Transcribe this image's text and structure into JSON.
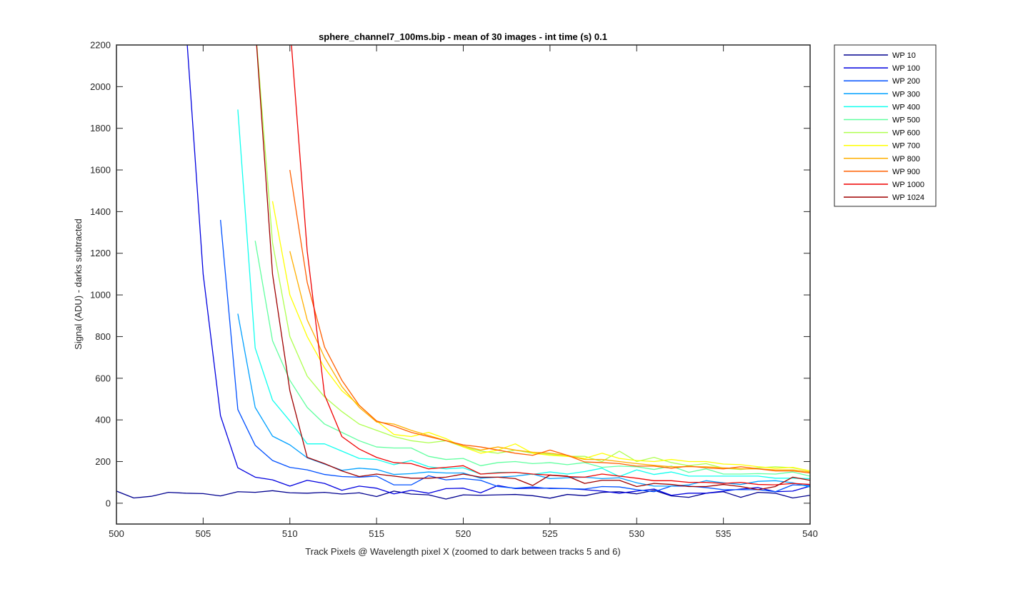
{
  "chart_data": {
    "type": "line",
    "title": "sphere_channel7_100ms.bip - mean of 30 images - int time (s) 0.1",
    "xlabel": "Track Pixels @ Wavelength pixel X  (zoomed to dark between tracks 5 and 6)",
    "ylabel": "Signal (ADU) - darks subtracted",
    "xlim": [
      500,
      540
    ],
    "ylim": [
      -100,
      2200
    ],
    "xticks": [
      500,
      505,
      510,
      515,
      520,
      525,
      530,
      535,
      540
    ],
    "yticks": [
      0,
      200,
      400,
      600,
      800,
      1000,
      1200,
      1400,
      1600,
      1800,
      2000,
      2200
    ],
    "grid": false,
    "legend_position": "outside-top-right",
    "x": [
      500,
      501,
      502,
      503,
      504,
      505,
      506,
      507,
      508,
      509,
      510,
      511,
      512,
      513,
      514,
      515,
      516,
      517,
      518,
      519,
      520,
      521,
      522,
      523,
      524,
      525,
      526,
      527,
      528,
      529,
      530,
      531,
      532,
      533,
      534,
      535,
      536,
      537,
      538,
      539,
      540
    ],
    "series": [
      {
        "name": "WP 10",
        "color": "#00008f",
        "values": [
          58,
          25,
          33,
          52,
          48,
          46,
          35,
          55,
          52,
          60,
          50,
          48,
          52,
          44,
          50,
          32,
          58,
          44,
          40,
          20,
          40,
          38,
          40,
          42,
          36,
          24,
          42,
          36,
          52,
          55,
          45,
          62,
          35,
          28,
          48,
          55,
          28,
          52,
          48,
          25,
          38
        ]
      },
      {
        "name": "WP 100",
        "color": "#0000df",
        "values": [
          null,
          null,
          null,
          null,
          2300,
          1100,
          420,
          170,
          125,
          112,
          82,
          110,
          95,
          62,
          82,
          72,
          45,
          62,
          48,
          70,
          72,
          50,
          85,
          70,
          72,
          72,
          70,
          65,
          58,
          48,
          58,
          68,
          38,
          48,
          48,
          58,
          68,
          75,
          55,
          58,
          82
        ]
      },
      {
        "name": "WP 200",
        "color": "#0050ff",
        "values": [
          null,
          null,
          null,
          null,
          null,
          null,
          1360,
          450,
          278,
          205,
          172,
          160,
          138,
          128,
          125,
          130,
          88,
          88,
          132,
          112,
          118,
          110,
          80,
          72,
          78,
          70,
          70,
          68,
          80,
          78,
          65,
          55,
          82,
          82,
          75,
          65,
          65,
          65,
          55,
          88,
          85
        ]
      },
      {
        "name": "WP 300",
        "color": "#00a0ff",
        "values": [
          null,
          null,
          null,
          null,
          null,
          null,
          null,
          910,
          460,
          322,
          280,
          218,
          188,
          158,
          168,
          162,
          138,
          142,
          150,
          145,
          145,
          120,
          125,
          130,
          140,
          118,
          122,
          125,
          118,
          122,
          98,
          82,
          82,
          88,
          108,
          98,
          90,
          105,
          108,
          98,
          78
        ]
      },
      {
        "name": "WP 400",
        "color": "#10ffef",
        "values": [
          null,
          null,
          null,
          null,
          null,
          null,
          null,
          1890,
          745,
          495,
          395,
          285,
          285,
          250,
          215,
          210,
          185,
          205,
          175,
          165,
          170,
          140,
          148,
          148,
          138,
          150,
          140,
          152,
          168,
          128,
          160,
          138,
          150,
          130,
          130,
          130,
          130,
          130,
          120,
          120,
          118
        ]
      },
      {
        "name": "WP 500",
        "color": "#60ff9f",
        "values": [
          null,
          null,
          null,
          null,
          null,
          null,
          null,
          null,
          1260,
          780,
          590,
          460,
          380,
          340,
          300,
          270,
          265,
          265,
          225,
          210,
          215,
          180,
          195,
          200,
          190,
          195,
          185,
          195,
          172,
          178,
          175,
          162,
          178,
          148,
          165,
          140,
          140,
          142,
          140,
          150,
          130
        ]
      },
      {
        "name": "WP 600",
        "color": "#afff50",
        "values": [
          null,
          null,
          null,
          null,
          null,
          null,
          null,
          null,
          2300,
          1250,
          800,
          610,
          510,
          440,
          380,
          350,
          320,
          300,
          290,
          300,
          270,
          250,
          240,
          255,
          240,
          235,
          225,
          225,
          200,
          250,
          200,
          220,
          195,
          180,
          190,
          168,
          162,
          170,
          175,
          170,
          155
        ]
      },
      {
        "name": "WP 700",
        "color": "#ffff00",
        "values": [
          null,
          null,
          null,
          null,
          null,
          null,
          null,
          null,
          null,
          1450,
          1000,
          800,
          650,
          540,
          470,
          395,
          330,
          320,
          340,
          310,
          270,
          240,
          255,
          285,
          240,
          230,
          225,
          215,
          240,
          215,
          205,
          200,
          210,
          200,
          200,
          188,
          185,
          175,
          168,
          172,
          155
        ]
      },
      {
        "name": "WP 800",
        "color": "#ffaf00",
        "values": [
          null,
          null,
          null,
          null,
          null,
          null,
          null,
          null,
          null,
          null,
          1210,
          880,
          700,
          560,
          460,
          390,
          380,
          350,
          325,
          300,
          275,
          255,
          270,
          255,
          245,
          240,
          230,
          210,
          210,
          200,
          190,
          182,
          175,
          175,
          175,
          170,
          165,
          165,
          160,
          160,
          150
        ]
      },
      {
        "name": "WP 900",
        "color": "#ff5f00",
        "values": [
          null,
          null,
          null,
          null,
          null,
          null,
          null,
          null,
          null,
          null,
          1600,
          1060,
          750,
          590,
          470,
          395,
          370,
          340,
          320,
          300,
          280,
          270,
          255,
          240,
          230,
          255,
          230,
          198,
          195,
          190,
          178,
          178,
          168,
          178,
          170,
          165,
          175,
          165,
          155,
          155,
          145
        ]
      },
      {
        "name": "WP 1000",
        "color": "#ef0000",
        "values": [
          null,
          null,
          null,
          null,
          null,
          null,
          null,
          null,
          null,
          null,
          2300,
          1210,
          520,
          320,
          260,
          220,
          195,
          190,
          165,
          172,
          180,
          140,
          145,
          148,
          140,
          135,
          128,
          125,
          140,
          130,
          120,
          108,
          108,
          100,
          100,
          95,
          100,
          90,
          88,
          95,
          90
        ]
      },
      {
        "name": "WP 1024",
        "color": "#9f0000",
        "values": [
          null,
          null,
          null,
          null,
          null,
          null,
          null,
          null,
          2300,
          1100,
          540,
          220,
          190,
          155,
          128,
          140,
          130,
          120,
          120,
          125,
          140,
          125,
          125,
          118,
          85,
          135,
          130,
          95,
          110,
          110,
          80,
          95,
          90,
          80,
          80,
          90,
          80,
          65,
          80,
          125,
          110
        ]
      }
    ]
  }
}
